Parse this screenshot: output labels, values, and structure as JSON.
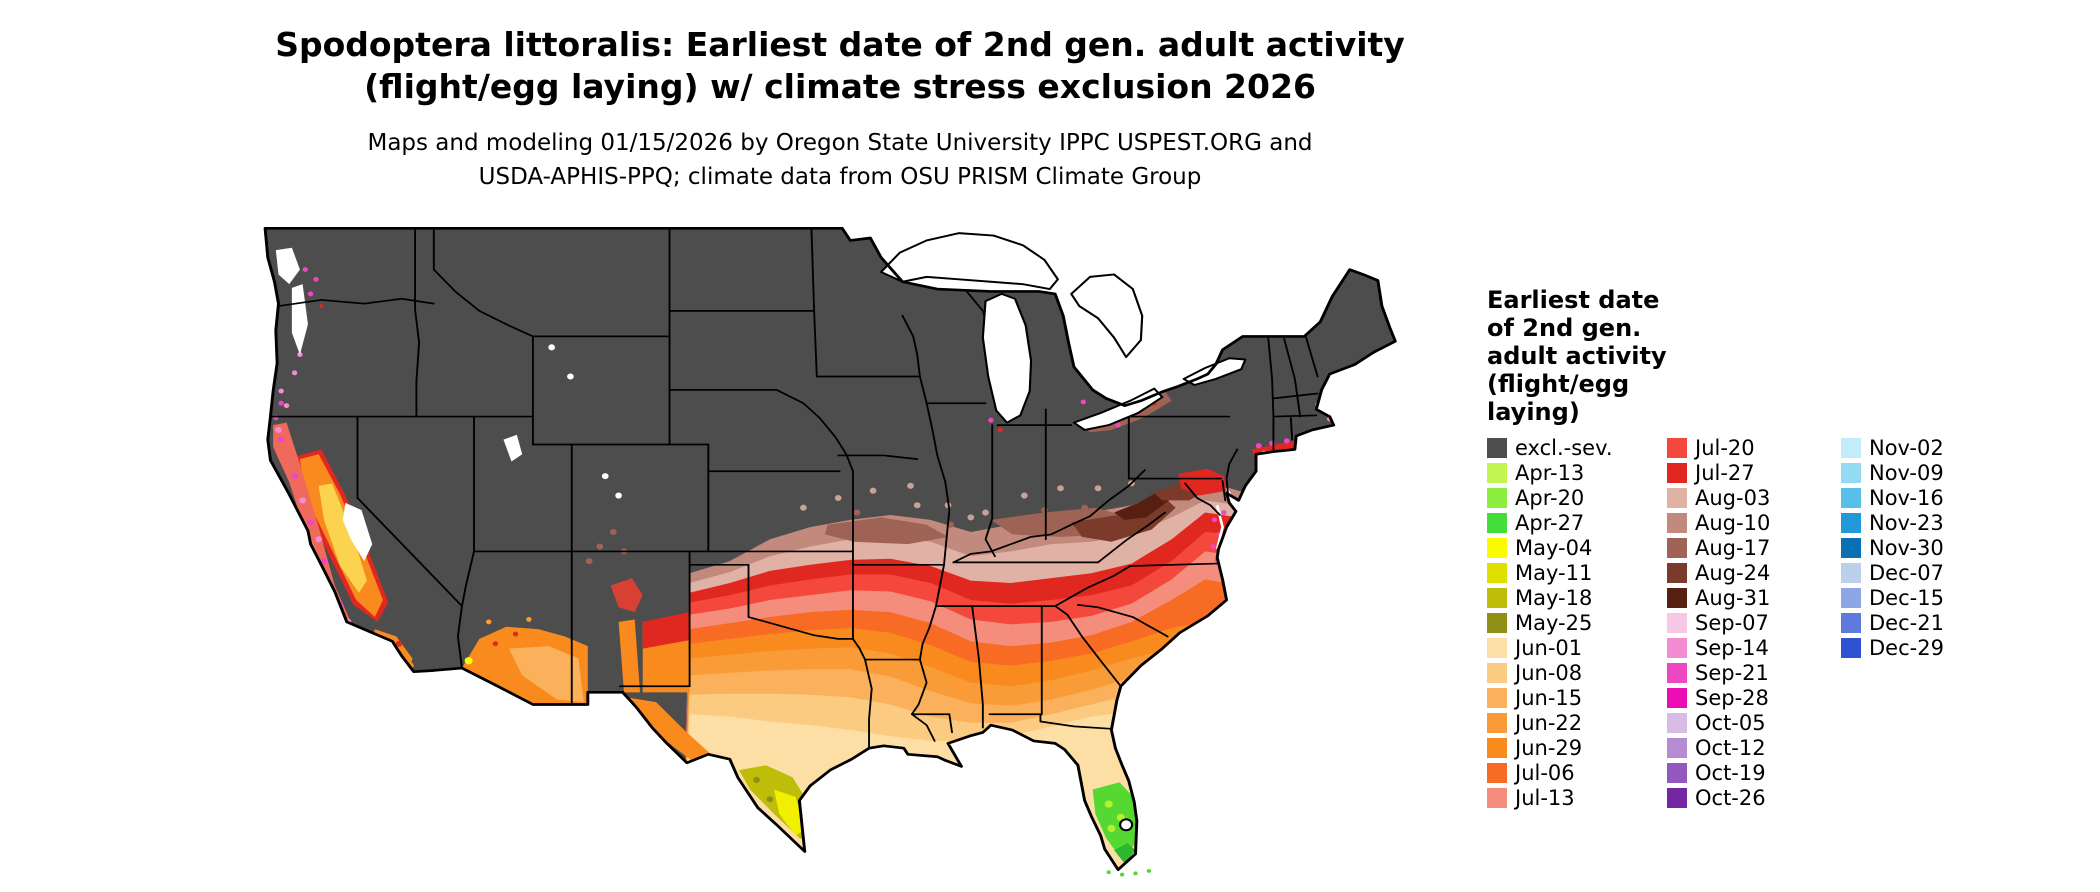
{
  "title": {
    "line1": "Spodoptera littoralis: Earliest date of 2nd gen. adult activity",
    "line2": "(flight/egg laying) w/ climate stress exclusion 2026"
  },
  "subtitle": {
    "line1": "Maps and modeling 01/15/2026 by Oregon State University IPPC USPEST.ORG and",
    "line2": "USDA-APHIS-PPQ; climate data from OSU PRISM Climate Group"
  },
  "legend": {
    "title_lines": [
      "Earliest date",
      "of 2nd gen.",
      "adult activity",
      "(flight/egg",
      "laying)"
    ],
    "columns": [
      {
        "items": [
          {
            "label": "excl.-sev.",
            "color": "#4d4d4d"
          },
          {
            "label": "Apr-13",
            "color": "#c3f550"
          },
          {
            "label": "Apr-20",
            "color": "#8bee3f"
          },
          {
            "label": "Apr-27",
            "color": "#44dd3a"
          },
          {
            "label": "May-04",
            "color": "#fbfb00"
          },
          {
            "label": "May-11",
            "color": "#e0e000"
          },
          {
            "label": "May-18",
            "color": "#bdbd0a"
          },
          {
            "label": "May-25",
            "color": "#909016"
          },
          {
            "label": "Jun-01",
            "color": "#fddfa6"
          },
          {
            "label": "Jun-08",
            "color": "#fccb82"
          },
          {
            "label": "Jun-15",
            "color": "#fbb05c"
          },
          {
            "label": "Jun-22",
            "color": "#f99c38"
          },
          {
            "label": "Jun-29",
            "color": "#f88a1e"
          },
          {
            "label": "Jul-06",
            "color": "#f76b24"
          },
          {
            "label": "Jul-13",
            "color": "#f58d7c"
          }
        ]
      },
      {
        "items": [
          {
            "label": "Jul-20",
            "color": "#f4483c"
          },
          {
            "label": "Jul-27",
            "color": "#e02820"
          },
          {
            "label": "Aug-03",
            "color": "#e0b2a5"
          },
          {
            "label": "Aug-10",
            "color": "#c28a7c"
          },
          {
            "label": "Aug-17",
            "color": "#9f6355"
          },
          {
            "label": "Aug-24",
            "color": "#7c3a2b"
          },
          {
            "label": "Aug-31",
            "color": "#571f12"
          },
          {
            "label": "Sep-07",
            "color": "#f7c7e3"
          },
          {
            "label": "Sep-14",
            "color": "#f48cd3"
          },
          {
            "label": "Sep-21",
            "color": "#ef46c2"
          },
          {
            "label": "Sep-28",
            "color": "#ea0cb4"
          },
          {
            "label": "Oct-05",
            "color": "#d9bce5"
          },
          {
            "label": "Oct-12",
            "color": "#b58cd4"
          },
          {
            "label": "Oct-19",
            "color": "#9258bf"
          },
          {
            "label": "Oct-26",
            "color": "#7527a3"
          }
        ]
      },
      {
        "items": [
          {
            "label": "Nov-02",
            "color": "#c3ecf9"
          },
          {
            "label": "Nov-09",
            "color": "#92dbf3"
          },
          {
            "label": "Nov-16",
            "color": "#57c0e9"
          },
          {
            "label": "Nov-23",
            "color": "#2398d8"
          },
          {
            "label": "Nov-30",
            "color": "#0b6fb4"
          },
          {
            "label": "Dec-07",
            "color": "#bccfeb"
          },
          {
            "label": "Dec-15",
            "color": "#8ea6e4"
          },
          {
            "label": "Dec-21",
            "color": "#5f7adc"
          },
          {
            "label": "Dec-29",
            "color": "#3050d2"
          }
        ]
      }
    ]
  }
}
